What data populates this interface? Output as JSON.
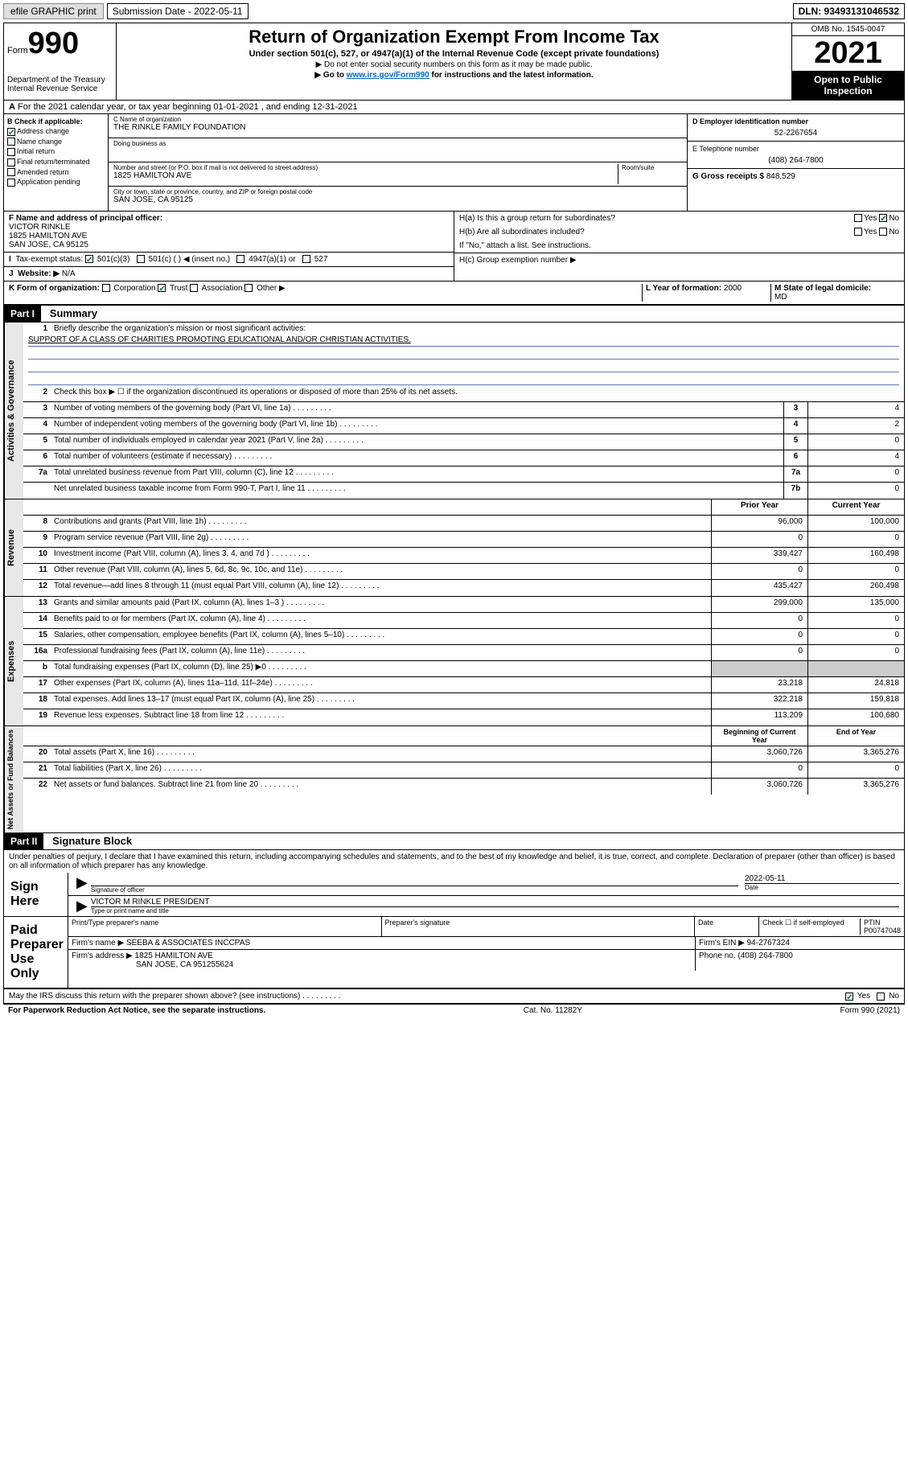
{
  "topbar": {
    "efile": "efile GRAPHIC print",
    "submission_label": "Submission Date - 2022-05-11",
    "dln": "DLN: 93493131046532"
  },
  "header": {
    "form_label": "Form",
    "form_num": "990",
    "dept": "Department of the Treasury",
    "irs": "Internal Revenue Service",
    "title": "Return of Organization Exempt From Income Tax",
    "sub": "Under section 501(c), 527, or 4947(a)(1) of the Internal Revenue Code (except private foundations)",
    "note1": "▶ Do not enter social security numbers on this form as it may be made public.",
    "note2_pre": "▶ Go to ",
    "note2_link": "www.irs.gov/Form990",
    "note2_post": " for instructions and the latest information.",
    "omb": "OMB No. 1545-0047",
    "year": "2021",
    "inspection": "Open to Public Inspection"
  },
  "rowA": "For the 2021 calendar year, or tax year beginning 01-01-2021  , and ending 12-31-2021",
  "b": {
    "label": "B Check if applicable:",
    "items": [
      "Address change",
      "Name change",
      "Initial return",
      "Final return/terminated",
      "Amended return",
      "Application pending"
    ],
    "checked_index": 0
  },
  "c": {
    "name_label": "C Name of organization",
    "name": "THE RINKLE FAMILY FOUNDATION",
    "dba_label": "Doing business as",
    "addr_label": "Number and street (or P.O. box if mail is not delivered to street address)",
    "room_label": "Room/suite",
    "addr": "1825 HAMILTON AVE",
    "city_label": "City or town, state or province, country, and ZIP or foreign postal code",
    "city": "SAN JOSE, CA  95125"
  },
  "d": {
    "label": "D Employer identification number",
    "value": "52-2267654"
  },
  "e": {
    "label": "E Telephone number",
    "value": "(408) 264-7800"
  },
  "g": {
    "label": "G Gross receipts $",
    "value": "848,529"
  },
  "f": {
    "label": "F Name and address of principal officer:",
    "name": "VICTOR RINKLE",
    "addr": "1825 HAMILTON AVE",
    "city": "SAN JOSE, CA  95125"
  },
  "h": {
    "a": "H(a)  Is this a group return for subordinates?",
    "a_yes": "Yes",
    "a_no": "No",
    "b": "H(b)  Are all subordinates included?",
    "b_note": "If \"No,\" attach a list. See instructions.",
    "c": "H(c)  Group exemption number ▶"
  },
  "i": {
    "label": "Tax-exempt status:",
    "opt1": "501(c)(3)",
    "opt2": "501(c) (  ) ◀ (insert no.)",
    "opt3": "4947(a)(1) or",
    "opt4": "527"
  },
  "j": {
    "label": "Website: ▶",
    "value": "N/A"
  },
  "k": {
    "label": "K Form of organization:",
    "opts": [
      "Corporation",
      "Trust",
      "Association",
      "Other ▶"
    ],
    "checked_index": 1
  },
  "l": {
    "label": "L Year of formation:",
    "value": "2000"
  },
  "m": {
    "label": "M State of legal domicile:",
    "value": "MD"
  },
  "part1": {
    "header": "Part I",
    "title": "Summary"
  },
  "summary": {
    "q1": "Briefly describe the organization's mission or most significant activities:",
    "mission": "SUPPORT OF A CLASS OF CHARITIES PROMOTING EDUCATIONAL AND/OR CHRISTIAN ACTIVITIES.",
    "q2": "Check this box ▶ ☐  if the organization discontinued its operations or disposed of more than 25% of its net assets.",
    "rows_gov": [
      {
        "n": "3",
        "d": "Number of voting members of the governing body (Part VI, line 1a)",
        "box": "3",
        "v": "4"
      },
      {
        "n": "4",
        "d": "Number of independent voting members of the governing body (Part VI, line 1b)",
        "box": "4",
        "v": "2"
      },
      {
        "n": "5",
        "d": "Total number of individuals employed in calendar year 2021 (Part V, line 2a)",
        "box": "5",
        "v": "0"
      },
      {
        "n": "6",
        "d": "Total number of volunteers (estimate if necessary)",
        "box": "6",
        "v": "4"
      },
      {
        "n": "7a",
        "d": "Total unrelated business revenue from Part VIII, column (C), line 12",
        "box": "7a",
        "v": "0"
      },
      {
        "n": "",
        "d": "Net unrelated business taxable income from Form 990-T, Part I, line 11",
        "box": "7b",
        "v": "0"
      }
    ],
    "col_prior": "Prior Year",
    "col_curr": "Current Year",
    "rows_rev": [
      {
        "n": "8",
        "d": "Contributions and grants (Part VIII, line 1h)",
        "p": "96,000",
        "c": "100,000"
      },
      {
        "n": "9",
        "d": "Program service revenue (Part VIII, line 2g)",
        "p": "0",
        "c": "0"
      },
      {
        "n": "10",
        "d": "Investment income (Part VIII, column (A), lines 3, 4, and 7d )",
        "p": "339,427",
        "c": "160,498"
      },
      {
        "n": "11",
        "d": "Other revenue (Part VIII, column (A), lines 5, 6d, 8c, 9c, 10c, and 11e)",
        "p": "0",
        "c": "0"
      },
      {
        "n": "12",
        "d": "Total revenue—add lines 8 through 11 (must equal Part VIII, column (A), line 12)",
        "p": "435,427",
        "c": "260,498"
      }
    ],
    "rows_exp": [
      {
        "n": "13",
        "d": "Grants and similar amounts paid (Part IX, column (A), lines 1–3 )",
        "p": "299,000",
        "c": "135,000"
      },
      {
        "n": "14",
        "d": "Benefits paid to or for members (Part IX, column (A), line 4)",
        "p": "0",
        "c": "0"
      },
      {
        "n": "15",
        "d": "Salaries, other compensation, employee benefits (Part IX, column (A), lines 5–10)",
        "p": "0",
        "c": "0"
      },
      {
        "n": "16a",
        "d": "Professional fundraising fees (Part IX, column (A), line 11e)",
        "p": "0",
        "c": "0"
      },
      {
        "n": "b",
        "d": "Total fundraising expenses (Part IX, column (D), line 25) ▶0",
        "p": "",
        "c": "",
        "shade": true
      },
      {
        "n": "17",
        "d": "Other expenses (Part IX, column (A), lines 11a–11d, 11f–24e)",
        "p": "23,218",
        "c": "24,818"
      },
      {
        "n": "18",
        "d": "Total expenses. Add lines 13–17 (must equal Part IX, column (A), line 25)",
        "p": "322,218",
        "c": "159,818"
      },
      {
        "n": "19",
        "d": "Revenue less expenses. Subtract line 18 from line 12",
        "p": "113,209",
        "c": "100,680"
      }
    ],
    "col_beg": "Beginning of Current Year",
    "col_end": "End of Year",
    "rows_net": [
      {
        "n": "20",
        "d": "Total assets (Part X, line 16)",
        "p": "3,060,726",
        "c": "3,365,276"
      },
      {
        "n": "21",
        "d": "Total liabilities (Part X, line 26)",
        "p": "0",
        "c": "0"
      },
      {
        "n": "22",
        "d": "Net assets or fund balances. Subtract line 21 from line 20",
        "p": "3,060,726",
        "c": "3,365,276"
      }
    ],
    "tabs": [
      "Activities & Governance",
      "Revenue",
      "Expenses",
      "Net Assets or Fund Balances"
    ]
  },
  "part2": {
    "header": "Part II",
    "title": "Signature Block"
  },
  "sig": {
    "penalties": "Under penalties of perjury, I declare that I have examined this return, including accompanying schedules and statements, and to the best of my knowledge and belief, it is true, correct, and complete. Declaration of preparer (other than officer) is based on all information of which preparer has any knowledge.",
    "sign_here": "Sign Here",
    "sig_officer": "Signature of officer",
    "date": "Date",
    "date_val": "2022-05-11",
    "name_title": "VICTOR M RINKLE  PRESIDENT",
    "name_label": "Type or print name and title",
    "paid": "Paid Preparer Use Only",
    "prep_name_label": "Print/Type preparer's name",
    "prep_sig_label": "Preparer's signature",
    "prep_date_label": "Date",
    "prep_check": "Check ☐ if self-employed",
    "ptin_label": "PTIN",
    "ptin": "P00747048",
    "firm_name_label": "Firm's name    ▶",
    "firm_name": "SEEBA & ASSOCIATES INCCPAS",
    "firm_ein_label": "Firm's EIN ▶",
    "firm_ein": "94-2767324",
    "firm_addr_label": "Firm's address ▶",
    "firm_addr1": "1825 HAMILTON AVE",
    "firm_addr2": "SAN JOSE, CA  951255624",
    "phone_label": "Phone no.",
    "phone": "(408) 264-7800",
    "discuss": "May the IRS discuss this return with the preparer shown above? (see instructions)",
    "yes": "Yes",
    "no": "No"
  },
  "footer": {
    "left": "For Paperwork Reduction Act Notice, see the separate instructions.",
    "mid": "Cat. No. 11282Y",
    "right": "Form 990 (2021)"
  }
}
